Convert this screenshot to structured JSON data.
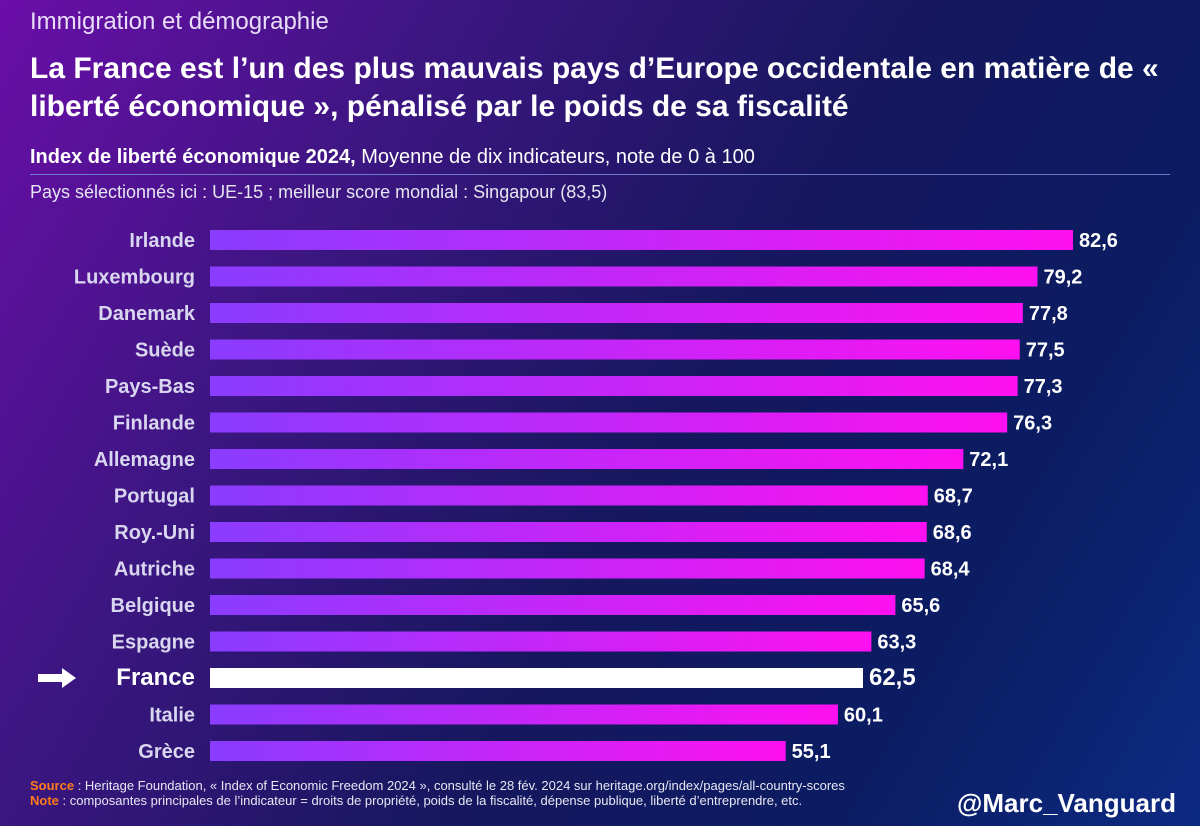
{
  "header": {
    "topic": "Immigration et démographie",
    "title": "La France est l’un des plus mauvais pays d’Europe occidentale en matière de « liberté économique », pénalisé par le poids de sa fiscalité",
    "subtitle_strong": "Index de liberté économique 2024,",
    "subtitle_rest": " Moyenne de dix indicateurs, note de 0 à 100",
    "selection_note": "Pays sélectionnés ici : UE-15 ; meilleur score mondial : Singapour (83,5)"
  },
  "chart_data": {
    "type": "bar",
    "orientation": "horizontal",
    "categories": [
      "Irlande",
      "Luxembourg",
      "Danemark",
      "Suède",
      "Pays-Bas",
      "Finlande",
      "Allemagne",
      "Portugal",
      "Roy.-Uni",
      "Autriche",
      "Belgique",
      "Espagne",
      "France",
      "Italie",
      "Grèce"
    ],
    "values": [
      82.6,
      79.2,
      77.8,
      77.5,
      77.3,
      76.3,
      72.1,
      68.7,
      68.6,
      68.4,
      65.6,
      63.3,
      62.5,
      60.1,
      55.1
    ],
    "value_labels": [
      "82,6",
      "79,2",
      "77,8",
      "77,5",
      "77,3",
      "76,3",
      "72,1",
      "68,7",
      "68,6",
      "68,4",
      "65,6",
      "63,3",
      "62,5",
      "60,1",
      "55,1"
    ],
    "highlight": "France",
    "highlight_color": "#ffffff",
    "bar_gradient": [
      "#8a3cff",
      "#ff10f0"
    ],
    "xlim": [
      0,
      82.6
    ],
    "grid": false
  },
  "footer": {
    "source_label": "Source",
    "source_text": " : Heritage Foundation, « Index of Economic Freedom 2024 », consulté le 28 fév. 2024 sur heritage.org/index/pages/all-country-scores",
    "note_label": "Note",
    "note_text": " : composantes principales de l’indicateur = droits de propriété, poids de la fiscalité, dépense publique, liberté d’entreprendre, etc.",
    "handle": "@Marc_Vanguard"
  }
}
